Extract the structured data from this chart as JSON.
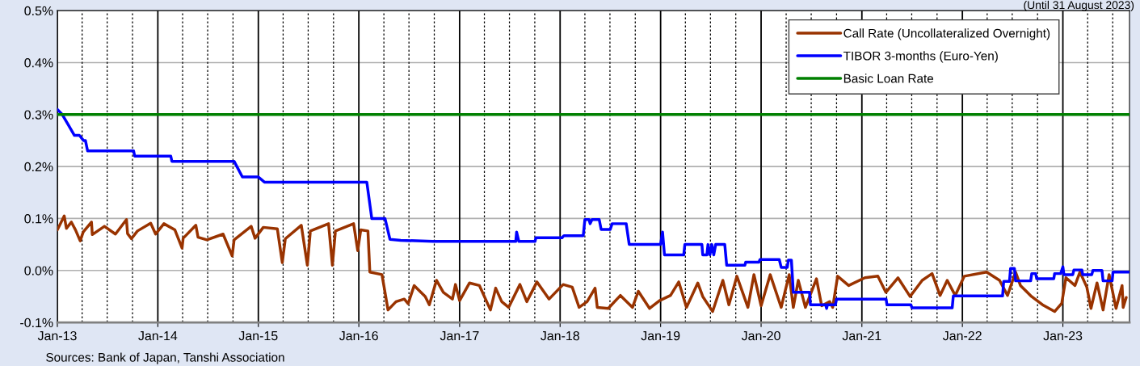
{
  "chart_data": {
    "type": "line",
    "ylim": [
      -0.1,
      0.5
    ],
    "yticks": [
      {
        "value": -0.1,
        "label": "-0.1%"
      },
      {
        "value": 0.0,
        "label": "0.0%"
      },
      {
        "value": 0.1,
        "label": "0.1%"
      },
      {
        "value": 0.2,
        "label": "0.2%"
      },
      {
        "value": 0.3,
        "label": "0.3%"
      },
      {
        "value": 0.4,
        "label": "0.4%"
      },
      {
        "value": 0.5,
        "label": "0.5%"
      }
    ],
    "xlim": [
      "2013-01-01",
      "2023-08-31"
    ],
    "xticks": [
      {
        "value": "2013-01-01",
        "label": "Jan-13"
      },
      {
        "value": "2014-01-01",
        "label": "Jan-14"
      },
      {
        "value": "2015-01-01",
        "label": "Jan-15"
      },
      {
        "value": "2016-01-01",
        "label": "Jan-16"
      },
      {
        "value": "2017-01-01",
        "label": "Jan-17"
      },
      {
        "value": "2018-01-01",
        "label": "Jan-18"
      },
      {
        "value": "2019-01-01",
        "label": "Jan-19"
      },
      {
        "value": "2020-01-01",
        "label": "Jan-20"
      },
      {
        "value": "2021-01-01",
        "label": "Jan-21"
      },
      {
        "value": "2022-01-01",
        "label": "Jan-22"
      },
      {
        "value": "2023-01-01",
        "label": "Jan-23"
      }
    ],
    "grid": true,
    "legend": "top right",
    "marker": "none",
    "line_style": "solid",
    "annotations": [
      "(Until 31 August 2023)",
      "Sources: Bank of Japan, Tanshi Association"
    ],
    "series": [
      {
        "name": "Call Rate (Uncollateralized Overnight)",
        "color": "#993300",
        "x": [
          "2013-01-01",
          "2013-01-26",
          "2013-02-03",
          "2013-02-21",
          "2013-03-08",
          "2013-03-25",
          "2013-04-05",
          "2013-05-05",
          "2013-05-08",
          "2013-06-21",
          "2013-07-31",
          "2013-09-09",
          "2013-09-13",
          "2013-09-27",
          "2013-10-19",
          "2013-12-06",
          "2013-12-24",
          "2014-01-23",
          "2014-03-04",
          "2014-03-30",
          "2014-04-03",
          "2014-05-19",
          "2014-05-27",
          "2014-06-28",
          "2014-08-26",
          "2014-09-28",
          "2014-10-05",
          "2014-12-06",
          "2014-12-20",
          "2015-01-19",
          "2015-03-11",
          "2015-03-29",
          "2015-04-09",
          "2015-06-06",
          "2015-06-28",
          "2015-07-09",
          "2015-09-13",
          "2015-09-27",
          "2015-10-08",
          "2015-12-13",
          "2015-12-28",
          "2016-01-08",
          "2016-02-03",
          "2016-02-10",
          "2016-03-25",
          "2016-04-16",
          "2016-05-15",
          "2016-06-14",
          "2016-06-28",
          "2016-07-20",
          "2016-08-29",
          "2016-09-13",
          "2016-10-09",
          "2016-11-03",
          "2016-12-06",
          "2016-12-17",
          "2017-01-01",
          "2017-02-06",
          "2017-03-14",
          "2017-04-23",
          "2017-05-12",
          "2017-06-03",
          "2017-06-28",
          "2017-08-08",
          "2017-09-02",
          "2017-10-09",
          "2017-11-22",
          "2018-01-12",
          "2018-02-14",
          "2018-03-11",
          "2018-04-09",
          "2018-05-08",
          "2018-05-16",
          "2018-06-25",
          "2018-08-08",
          "2018-09-21",
          "2018-10-12",
          "2018-11-22",
          "2018-12-28",
          "2019-02-06",
          "2019-03-08",
          "2019-04-05",
          "2019-05-16",
          "2019-06-03",
          "2019-07-09",
          "2019-08-15",
          "2019-09-06",
          "2019-10-05",
          "2019-11-14",
          "2019-12-06",
          "2020-01-01",
          "2020-02-03",
          "2020-03-14",
          "2020-04-12",
          "2020-04-27",
          "2020-05-15",
          "2020-06-10",
          "2020-07-20",
          "2020-08-08",
          "2020-09-06",
          "2020-09-17",
          "2020-10-05",
          "2020-11-14",
          "2021-01-12",
          "2021-02-28",
          "2021-03-29",
          "2021-05-12",
          "2021-06-25",
          "2021-08-08",
          "2021-09-13",
          "2021-10-12",
          "2021-11-07",
          "2021-12-06",
          "2022-01-08",
          "2022-03-30",
          "2022-05-16",
          "2022-06-14",
          "2022-07-13",
          "2022-07-31",
          "2022-09-09",
          "2022-10-19",
          "2022-12-02",
          "2022-12-28",
          "2023-01-12",
          "2023-02-14",
          "2023-03-04",
          "2023-03-29",
          "2023-04-13",
          "2023-05-05",
          "2023-05-27",
          "2023-06-18",
          "2023-07-13",
          "2023-08-04",
          "2023-08-08",
          "2023-08-19"
        ],
        "values": [
          0.078,
          0.105,
          0.081,
          0.093,
          0.078,
          0.057,
          0.074,
          0.093,
          0.069,
          0.085,
          0.07,
          0.098,
          0.071,
          0.061,
          0.076,
          0.091,
          0.07,
          0.09,
          0.078,
          0.043,
          0.062,
          0.087,
          0.064,
          0.059,
          0.07,
          0.028,
          0.059,
          0.085,
          0.062,
          0.083,
          0.08,
          0.015,
          0.061,
          0.087,
          0.01,
          0.076,
          0.09,
          0.01,
          0.076,
          0.09,
          0.038,
          0.078,
          0.076,
          -0.003,
          -0.008,
          -0.076,
          -0.06,
          -0.055,
          -0.064,
          -0.029,
          -0.05,
          -0.066,
          -0.019,
          -0.042,
          -0.055,
          -0.027,
          -0.058,
          -0.024,
          -0.029,
          -0.076,
          -0.034,
          -0.06,
          -0.071,
          -0.027,
          -0.06,
          -0.022,
          -0.055,
          -0.027,
          -0.032,
          -0.071,
          -0.06,
          -0.034,
          -0.071,
          -0.073,
          -0.048,
          -0.071,
          -0.04,
          -0.073,
          -0.058,
          -0.048,
          -0.022,
          -0.071,
          -0.024,
          -0.05,
          -0.079,
          -0.019,
          -0.066,
          -0.011,
          -0.071,
          -0.008,
          -0.068,
          -0.008,
          -0.071,
          -0.008,
          -0.071,
          -0.019,
          -0.071,
          -0.016,
          -0.068,
          -0.06,
          -0.071,
          -0.011,
          -0.029,
          -0.014,
          -0.011,
          -0.042,
          -0.014,
          -0.05,
          -0.019,
          -0.006,
          -0.048,
          -0.019,
          -0.048,
          -0.011,
          -0.003,
          -0.019,
          -0.048,
          -0.003,
          -0.029,
          -0.05,
          -0.066,
          -0.079,
          -0.063,
          -0.014,
          -0.029,
          -0.003,
          -0.032,
          -0.073,
          -0.024,
          -0.076,
          -0.008,
          -0.073,
          -0.029,
          -0.071,
          -0.052
        ]
      },
      {
        "name": "TIBOR 3-months (Euro-Yen)",
        "color": "#0000ff",
        "x": [
          "2013-01-01",
          "2013-01-19",
          "2013-02-10",
          "2013-03-04",
          "2013-03-22",
          "2013-04-06",
          "2013-04-13",
          "2013-04-21",
          "2013-10-05",
          "2013-10-09",
          "2014-02-17",
          "2014-02-21",
          "2014-10-05",
          "2014-11-04",
          "2015-01-01",
          "2015-01-23",
          "2016-01-30",
          "2016-02-17",
          "2016-04-05",
          "2016-04-23",
          "2016-06-01",
          "2016-09-27",
          "2017-07-24",
          "2017-07-27",
          "2017-08-04",
          "2017-10-02",
          "2017-10-05",
          "2018-01-08",
          "2018-01-15",
          "2018-03-26",
          "2018-04-01",
          "2018-04-16",
          "2018-04-20",
          "2018-04-27",
          "2018-05-23",
          "2018-05-30",
          "2018-07-02",
          "2018-07-09",
          "2018-08-29",
          "2018-09-09",
          "2019-01-01",
          "2019-01-08",
          "2019-01-15",
          "2019-03-26",
          "2019-03-30",
          "2019-05-31",
          "2019-06-03",
          "2019-06-18",
          "2019-06-22",
          "2019-06-29",
          "2019-07-06",
          "2019-07-13",
          "2019-07-20",
          "2019-08-22",
          "2019-08-29",
          "2019-11-03",
          "2019-11-06",
          "2019-12-24",
          "2019-12-28",
          "2020-03-07",
          "2020-03-14",
          "2020-04-05",
          "2020-04-09",
          "2020-04-20",
          "2020-04-27",
          "2020-06-25",
          "2020-06-28",
          "2020-08-22",
          "2020-08-26",
          "2020-08-29",
          "2020-09-27",
          "2020-10-01",
          "2021-03-30",
          "2021-04-02",
          "2021-06-28",
          "2021-07-02",
          "2021-11-25",
          "2021-11-29",
          "2022-05-27",
          "2022-05-31",
          "2022-06-21",
          "2022-06-25",
          "2022-07-09",
          "2022-07-13",
          "2022-09-06",
          "2022-09-10",
          "2022-09-24",
          "2022-09-28",
          "2022-11-29",
          "2022-12-02",
          "2022-12-24",
          "2023-01-01",
          "2023-01-05",
          "2023-02-06",
          "2023-02-10",
          "2023-03-11",
          "2023-03-14",
          "2023-04-16",
          "2023-04-20",
          "2023-05-23",
          "2023-05-27",
          "2023-06-29",
          "2023-07-02",
          "2023-08-29"
        ],
        "values": [
          0.31,
          0.3,
          0.28,
          0.26,
          0.26,
          0.25,
          0.25,
          0.23,
          0.23,
          0.22,
          0.22,
          0.21,
          0.21,
          0.18,
          0.18,
          0.17,
          0.17,
          0.1,
          0.1,
          0.06,
          0.058,
          0.056,
          0.056,
          0.074,
          0.056,
          0.056,
          0.063,
          0.063,
          0.067,
          0.067,
          0.098,
          0.098,
          0.09,
          0.098,
          0.098,
          0.079,
          0.079,
          0.09,
          0.09,
          0.05,
          0.05,
          0.074,
          0.03,
          0.03,
          0.05,
          0.05,
          0.03,
          0.03,
          0.05,
          0.03,
          0.05,
          0.03,
          0.05,
          0.05,
          0.01,
          0.01,
          0.016,
          0.016,
          0.021,
          0.021,
          0.006,
          0.006,
          0.02,
          0.02,
          -0.042,
          -0.042,
          -0.066,
          -0.066,
          -0.073,
          -0.066,
          -0.066,
          -0.055,
          -0.055,
          -0.066,
          -0.066,
          -0.072,
          -0.072,
          -0.049,
          -0.049,
          -0.021,
          -0.021,
          0.004,
          0.004,
          -0.02,
          -0.02,
          -0.006,
          -0.006,
          -0.016,
          -0.016,
          -0.006,
          -0.006,
          0.007,
          -0.008,
          -0.008,
          0.001,
          0.001,
          -0.008,
          -0.008,
          0.0,
          0.0,
          -0.02,
          -0.02,
          -0.003,
          -0.003
        ]
      },
      {
        "name": "Basic Loan Rate",
        "color": "#008000",
        "x": [
          "2013-01-01",
          "2023-08-29"
        ],
        "values": [
          0.3,
          0.3
        ]
      }
    ]
  }
}
